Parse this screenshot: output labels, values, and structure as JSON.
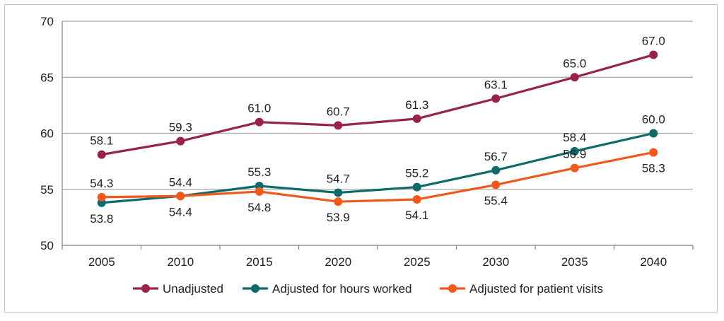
{
  "chart_data": {
    "type": "line",
    "categories": [
      "2005",
      "2010",
      "2015",
      "2020",
      "2025",
      "2030",
      "2035",
      "2040"
    ],
    "ylim": [
      50,
      70
    ],
    "yticks": [
      50,
      55,
      60,
      65,
      70
    ],
    "grid": true,
    "legend_position": "bottom",
    "series": [
      {
        "name": "Unadjusted",
        "color": "#99224d",
        "values": [
          58.1,
          59.3,
          61.0,
          60.7,
          61.3,
          63.1,
          65.0,
          67.0
        ],
        "label_position": "above"
      },
      {
        "name": "Adjusted for hours worked",
        "color": "#0f6b6b",
        "values": [
          53.8,
          54.4,
          55.3,
          54.7,
          55.2,
          56.7,
          58.4,
          60.0
        ],
        "label_position": "mixed"
      },
      {
        "name": "Adjusted for patient visits",
        "color": "#f0581c",
        "values": [
          54.3,
          54.4,
          54.8,
          53.9,
          54.1,
          55.4,
          56.9,
          58.3
        ],
        "label_position": "mixed"
      }
    ],
    "data_labels": [
      [
        "58.1",
        "59.3",
        "61.0",
        "60.7",
        "61.3",
        "63.1",
        "65.0",
        "67.0"
      ],
      [
        "53.8",
        "54.4",
        "55.3",
        "54.7",
        "55.2",
        "56.7",
        "58.4",
        "60.0"
      ],
      [
        "54.3",
        "54.4",
        "54.8",
        "53.9",
        "54.1",
        "55.4",
        "56.9",
        "58.3"
      ]
    ]
  }
}
